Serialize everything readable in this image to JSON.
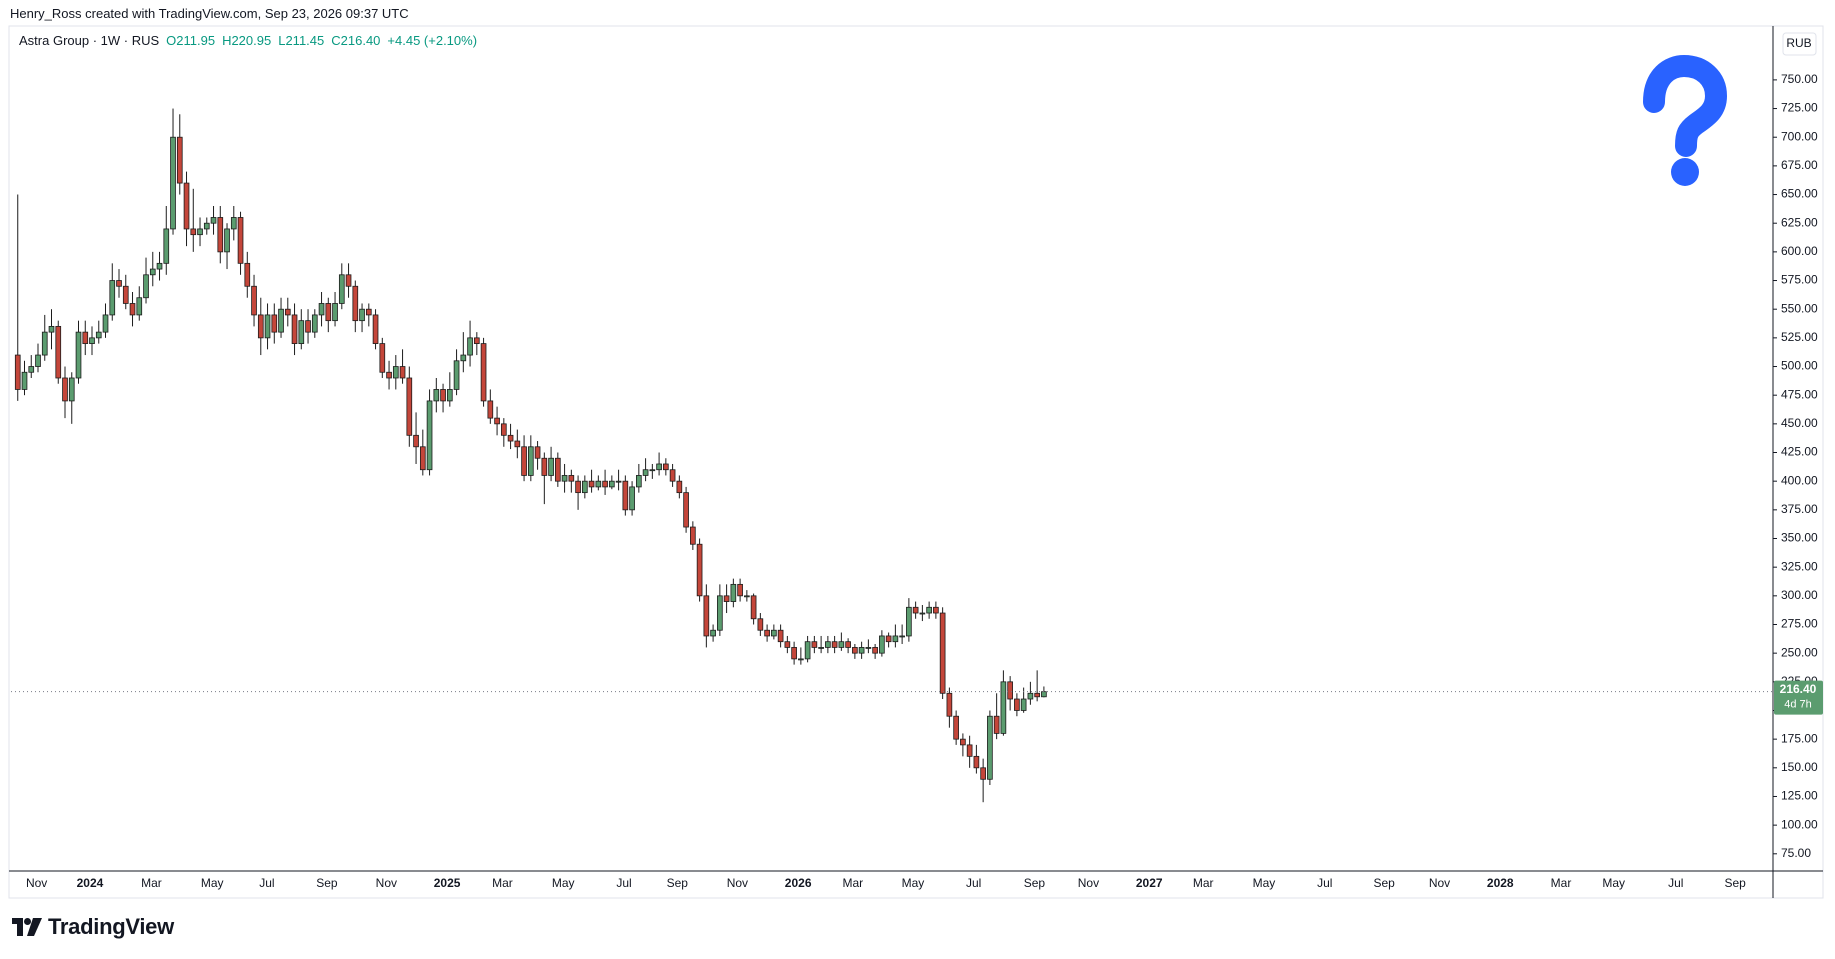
{
  "header": {
    "attribution": "Henry_Ross created with TradingView.com, Sep 23, 2026 09:37 UTC"
  },
  "footer": {
    "logo_text": "TradingView"
  },
  "chart_data": {
    "type": "candlestick",
    "title": "Astra Group · 1W · RUS",
    "ohlc_labels": [
      "O211.95",
      "H220.95",
      "L211.45",
      "C216.40"
    ],
    "change_label": "+4.45 (+2.10%)",
    "currency": "RUB",
    "last_price_label": "216.40",
    "countdown": "4d 7h",
    "up_color": "#5b9c6f",
    "down_color": "#c4463a",
    "border_color": "#1c1c1c",
    "grid": false,
    "xlim": [
      -1,
      260
    ],
    "xticks": [
      {
        "value": 2.8,
        "label": "Nov"
      },
      {
        "value": 10.7,
        "label": "2024"
      },
      {
        "value": 19.8,
        "label": "Mar"
      },
      {
        "value": 28.8,
        "label": "May"
      },
      {
        "value": 36.9,
        "label": "Jul"
      },
      {
        "value": 45.8,
        "label": "Sep"
      },
      {
        "value": 54.6,
        "label": "Nov"
      },
      {
        "value": 63.6,
        "label": "2025"
      },
      {
        "value": 71.8,
        "label": "Mar"
      },
      {
        "value": 80.8,
        "label": "May"
      },
      {
        "value": 89.8,
        "label": "Jul"
      },
      {
        "value": 97.7,
        "label": "Sep"
      },
      {
        "value": 106.6,
        "label": "Nov"
      },
      {
        "value": 115.6,
        "label": "2026"
      },
      {
        "value": 123.7,
        "label": "Mar"
      },
      {
        "value": 132.6,
        "label": "May"
      },
      {
        "value": 141.6,
        "label": "Jul"
      },
      {
        "value": 150.6,
        "label": "Sep"
      },
      {
        "value": 158.6,
        "label": "Nov"
      },
      {
        "value": 167.6,
        "label": "2027"
      },
      {
        "value": 175.6,
        "label": "Mar"
      },
      {
        "value": 184.6,
        "label": "May"
      },
      {
        "value": 193.6,
        "label": "Jul"
      },
      {
        "value": 202.4,
        "label": "Sep"
      },
      {
        "value": 210.6,
        "label": "Nov"
      },
      {
        "value": 219.6,
        "label": "2028"
      },
      {
        "value": 228.6,
        "label": "Mar"
      },
      {
        "value": 236.4,
        "label": "May"
      },
      {
        "value": 245.6,
        "label": "Jul"
      },
      {
        "value": 254.4,
        "label": "Sep"
      }
    ],
    "ylim": [
      60,
      797
    ],
    "yticks": [
      {
        "value": 75,
        "label": "75.00"
      },
      {
        "value": 100,
        "label": "100.00"
      },
      {
        "value": 125,
        "label": "125.00"
      },
      {
        "value": 150,
        "label": "150.00"
      },
      {
        "value": 175,
        "label": "175.00"
      },
      {
        "value": 200,
        "label": "200.00"
      },
      {
        "value": 225,
        "label": "225.00"
      },
      {
        "value": 250,
        "label": "250.00"
      },
      {
        "value": 275,
        "label": "275.00"
      },
      {
        "value": 300,
        "label": "300.00"
      },
      {
        "value": 325,
        "label": "325.00"
      },
      {
        "value": 350,
        "label": "350.00"
      },
      {
        "value": 375,
        "label": "375.00"
      },
      {
        "value": 400,
        "label": "400.00"
      },
      {
        "value": 425,
        "label": "425.00"
      },
      {
        "value": 450,
        "label": "450.00"
      },
      {
        "value": 475,
        "label": "475.00"
      },
      {
        "value": 500,
        "label": "500.00"
      },
      {
        "value": 525,
        "label": "525.00"
      },
      {
        "value": 550,
        "label": "550.00"
      },
      {
        "value": 575,
        "label": "575.00"
      },
      {
        "value": 600,
        "label": "600.00"
      },
      {
        "value": 625,
        "label": "625.00"
      },
      {
        "value": 650,
        "label": "650.00"
      },
      {
        "value": 675,
        "label": "675.00"
      },
      {
        "value": 700,
        "label": "700.00"
      },
      {
        "value": 725,
        "label": "725.00"
      },
      {
        "value": 750,
        "label": "750.00"
      }
    ],
    "open": [
      510,
      480,
      495,
      500,
      510,
      530,
      535,
      490,
      470,
      490,
      530,
      520,
      525,
      530,
      545,
      575,
      570,
      555,
      545,
      560,
      580,
      585,
      590,
      620,
      700,
      660,
      620,
      615,
      620,
      625,
      630,
      600,
      620,
      630,
      590,
      570,
      545,
      525,
      545,
      530,
      550,
      545,
      520,
      540,
      530,
      545,
      555,
      540,
      555,
      580,
      570,
      540,
      550,
      545,
      520,
      495,
      490,
      500,
      490,
      440,
      430,
      410,
      470,
      480,
      470,
      480,
      505,
      510,
      525,
      520,
      470,
      455,
      450,
      440,
      435,
      430,
      405,
      430,
      420,
      405,
      420,
      400,
      405,
      400,
      390,
      400,
      395,
      400,
      395,
      400,
      400,
      375,
      395,
      405,
      410,
      410,
      415,
      410,
      400,
      390,
      360,
      345,
      300,
      265,
      270,
      300,
      295,
      310,
      300,
      300,
      280,
      270,
      265,
      270,
      260,
      255,
      245,
      245,
      260,
      255,
      255,
      260,
      255,
      260,
      255,
      250,
      255,
      255,
      250,
      265,
      260,
      265,
      265,
      290,
      285,
      285,
      290,
      285,
      215,
      195,
      175,
      170,
      160,
      150,
      140,
      195,
      180,
      225,
      210,
      200,
      210,
      215,
      211.95
    ],
    "high": [
      650,
      505,
      510,
      520,
      545,
      550,
      540,
      500,
      495,
      540,
      540,
      535,
      540,
      555,
      590,
      585,
      580,
      565,
      570,
      595,
      600,
      600,
      640,
      725,
      720,
      670,
      655,
      630,
      630,
      640,
      640,
      625,
      640,
      635,
      600,
      580,
      560,
      555,
      555,
      560,
      560,
      555,
      550,
      550,
      550,
      565,
      560,
      565,
      590,
      590,
      575,
      555,
      555,
      550,
      525,
      505,
      510,
      515,
      500,
      460,
      445,
      480,
      490,
      485,
      495,
      515,
      530,
      540,
      530,
      525,
      480,
      465,
      455,
      450,
      445,
      440,
      440,
      435,
      425,
      430,
      425,
      415,
      410,
      405,
      405,
      410,
      405,
      410,
      405,
      410,
      405,
      400,
      415,
      420,
      415,
      425,
      420,
      415,
      405,
      395,
      365,
      350,
      310,
      275,
      310,
      310,
      315,
      315,
      305,
      302,
      285,
      275,
      275,
      275,
      265,
      260,
      255,
      265,
      265,
      265,
      265,
      265,
      268,
      263,
      258,
      260,
      262,
      258,
      270,
      268,
      275,
      275,
      298,
      295,
      292,
      295,
      295,
      290,
      220,
      200,
      180,
      178,
      170,
      158,
      200,
      215,
      235,
      230,
      215,
      220,
      225,
      235,
      220.95
    ],
    "low": [
      470,
      475,
      490,
      495,
      505,
      515,
      485,
      455,
      450,
      485,
      510,
      510,
      520,
      525,
      540,
      560,
      550,
      535,
      540,
      555,
      570,
      575,
      580,
      615,
      650,
      605,
      600,
      605,
      615,
      615,
      590,
      585,
      610,
      580,
      560,
      535,
      510,
      515,
      520,
      525,
      535,
      510,
      515,
      520,
      525,
      535,
      530,
      535,
      550,
      560,
      530,
      530,
      535,
      515,
      490,
      480,
      480,
      485,
      430,
      415,
      405,
      405,
      460,
      460,
      465,
      475,
      495,
      500,
      510,
      465,
      450,
      440,
      430,
      428,
      420,
      400,
      400,
      410,
      380,
      400,
      395,
      390,
      390,
      375,
      385,
      390,
      392,
      388,
      393,
      392,
      370,
      370,
      390,
      400,
      402,
      405,
      405,
      395,
      385,
      355,
      340,
      295,
      255,
      260,
      265,
      285,
      290,
      295,
      295,
      275,
      265,
      260,
      262,
      255,
      250,
      240,
      240,
      242,
      250,
      250,
      250,
      250,
      252,
      250,
      245,
      245,
      250,
      245,
      247,
      255,
      255,
      258,
      260,
      280,
      278,
      280,
      280,
      210,
      185,
      170,
      160,
      150,
      145,
      120,
      135,
      175,
      178,
      200,
      195,
      198,
      205,
      208,
      211.45
    ],
    "close": [
      480,
      495,
      500,
      510,
      530,
      535,
      490,
      470,
      490,
      530,
      520,
      525,
      530,
      545,
      575,
      570,
      555,
      545,
      560,
      580,
      585,
      590,
      620,
      700,
      660,
      620,
      615,
      620,
      625,
      630,
      600,
      620,
      630,
      590,
      570,
      545,
      525,
      545,
      530,
      550,
      545,
      520,
      540,
      530,
      545,
      555,
      540,
      555,
      580,
      570,
      540,
      550,
      545,
      520,
      495,
      490,
      500,
      490,
      440,
      430,
      410,
      470,
      480,
      470,
      480,
      505,
      510,
      525,
      520,
      470,
      455,
      450,
      440,
      435,
      430,
      405,
      430,
      420,
      405,
      420,
      400,
      405,
      400,
      390,
      400,
      395,
      400,
      395,
      400,
      400,
      375,
      395,
      405,
      410,
      410,
      415,
      410,
      400,
      390,
      360,
      345,
      300,
      265,
      270,
      300,
      295,
      310,
      300,
      300,
      280,
      270,
      265,
      270,
      260,
      255,
      245,
      245,
      260,
      255,
      255,
      260,
      255,
      260,
      255,
      250,
      255,
      255,
      250,
      265,
      260,
      265,
      265,
      290,
      285,
      285,
      290,
      285,
      215,
      195,
      175,
      170,
      160,
      150,
      140,
      195,
      180,
      225,
      210,
      200,
      210,
      215,
      211.95,
      216.4
    ]
  }
}
